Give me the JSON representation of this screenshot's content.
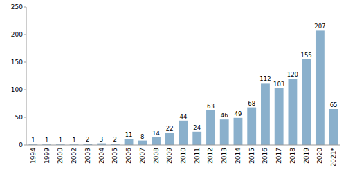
{
  "chart_data": {
    "type": "bar",
    "categories": [
      "1994",
      "1999",
      "2000",
      "2002",
      "2003",
      "2004",
      "2005",
      "2006",
      "2007",
      "2008",
      "2009",
      "2010",
      "2011",
      "2012",
      "2013",
      "2014",
      "2015",
      "2016",
      "2017",
      "2018",
      "2019",
      "2020",
      "2021*"
    ],
    "values": [
      1,
      1,
      1,
      1,
      2,
      3,
      2,
      11,
      8,
      14,
      22,
      44,
      24,
      63,
      46,
      49,
      68,
      112,
      103,
      120,
      155,
      207,
      65
    ],
    "color": "#8ab0cc",
    "ylim": [
      0,
      250
    ],
    "yticks": [
      0,
      50,
      100,
      150,
      200,
      250
    ],
    "grid": false,
    "data_labels": true
  }
}
